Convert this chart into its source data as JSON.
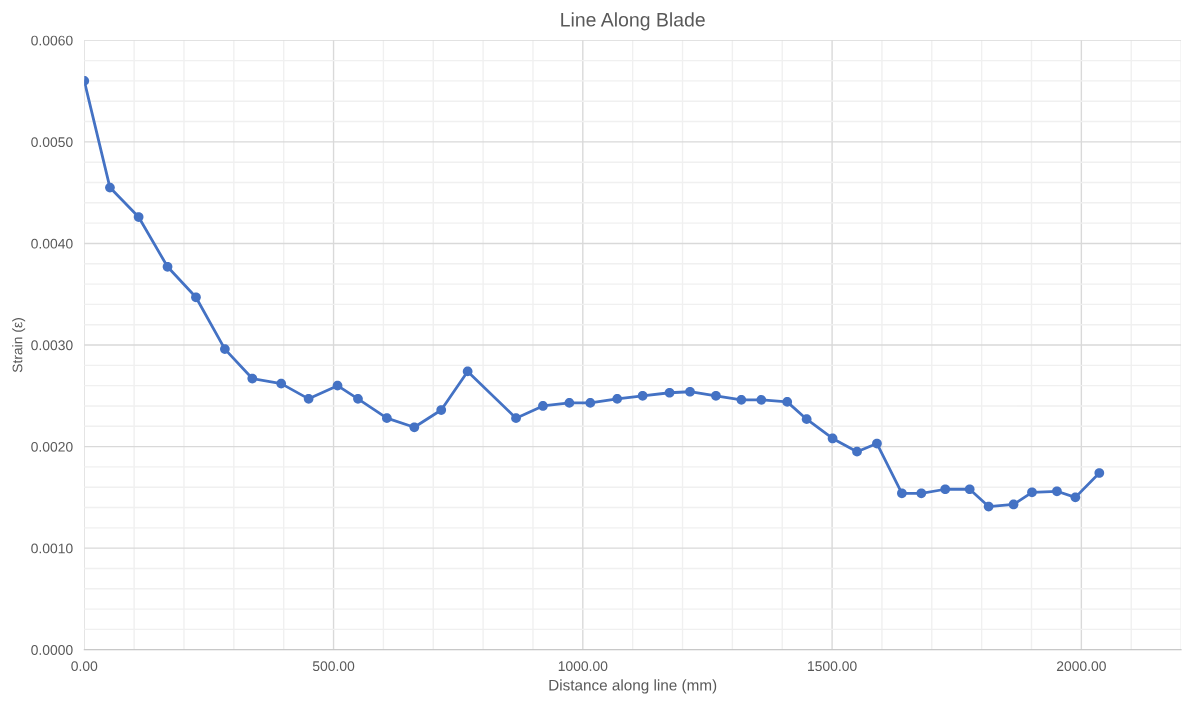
{
  "chart_data": {
    "type": "line",
    "title": "Line Along Blade",
    "xlabel": "Distance along line (mm)",
    "ylabel": "Strain (ε)",
    "series": [
      {
        "color": "#4472c4",
        "x": [
          0,
          51.5,
          109,
          167,
          224,
          282,
          337,
          395,
          450,
          508,
          549,
          607,
          662,
          716,
          769,
          866,
          920,
          973,
          1015,
          1069,
          1120,
          1174,
          1215,
          1267,
          1318,
          1358,
          1410,
          1449,
          1501,
          1550,
          1590,
          1640,
          1679,
          1727,
          1776,
          1814,
          1864,
          1901,
          1951,
          1988,
          2036
        ],
        "values": [
          0.0056,
          0.00455,
          0.00426,
          0.00377,
          0.00347,
          0.00296,
          0.00267,
          0.00262,
          0.00247,
          0.0026,
          0.00247,
          0.00228,
          0.00219,
          0.00236,
          0.00274,
          0.00228,
          0.0024,
          0.00243,
          0.00243,
          0.00247,
          0.0025,
          0.00253,
          0.00254,
          0.0025,
          0.00246,
          0.00246,
          0.00244,
          0.00227,
          0.00208,
          0.00195,
          0.00203,
          0.00154,
          0.00154,
          0.00158,
          0.00158,
          0.00141,
          0.00143,
          0.00155,
          0.00156,
          0.0015,
          0.00174
        ]
      }
    ],
    "xlim": [
      0,
      2200
    ],
    "xticks": [
      {
        "value": 0,
        "label": "0.00"
      },
      {
        "value": 500,
        "label": "500.00"
      },
      {
        "value": 1000,
        "label": "1000.00"
      },
      {
        "value": 1500,
        "label": "1500.00"
      },
      {
        "value": 2000,
        "label": "2000.00"
      }
    ],
    "ylim": [
      0,
      0.006
    ],
    "yticks": [
      {
        "value": 0,
        "label": "0.0000"
      },
      {
        "value": 0.001,
        "label": "0.0010"
      },
      {
        "value": 0.002,
        "label": "0.0020"
      },
      {
        "value": 0.003,
        "label": "0.0030"
      },
      {
        "value": 0.004,
        "label": "0.0040"
      },
      {
        "value": 0.005,
        "label": "0.0050"
      },
      {
        "value": 0.006,
        "label": "0.0060"
      }
    ],
    "grid": true,
    "marker": "circle",
    "line_style": "solid"
  }
}
